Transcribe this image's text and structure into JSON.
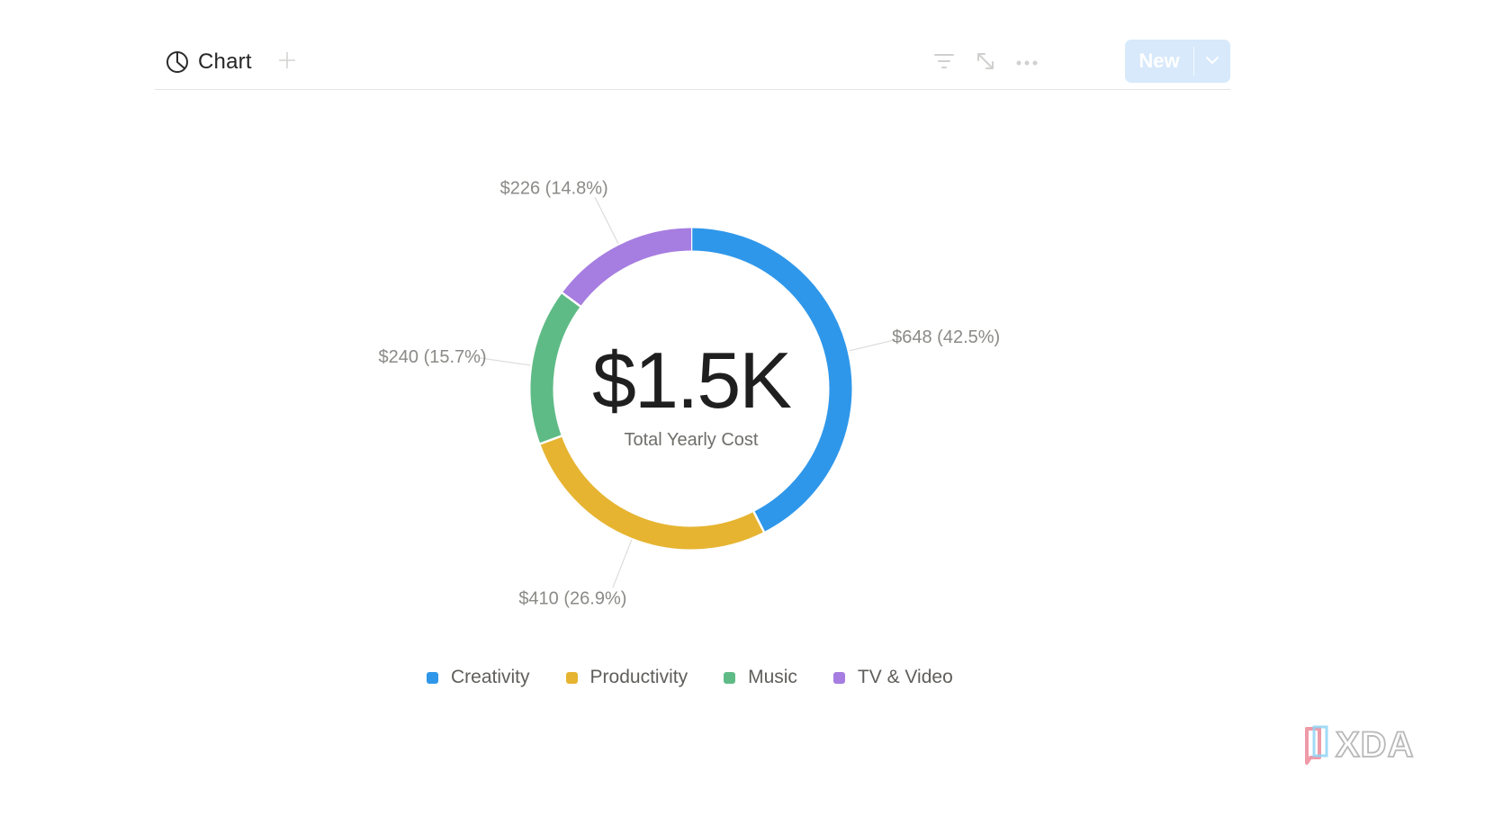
{
  "toolbar": {
    "view_tab_label": "Chart",
    "add_view_icon": "plus-icon",
    "filter_icon": "filter-icon",
    "expand_icon": "expand-icon",
    "more_icon": "more-horizontal-icon",
    "new_button_label": "New",
    "new_dropdown_icon": "chevron-down-icon"
  },
  "chart_data": {
    "type": "pie",
    "variant": "donut",
    "center_value": "$1.5K",
    "center_caption": "Total Yearly Cost",
    "legend_position": "bottom",
    "slices": [
      {
        "name": "Creativity",
        "value": 648,
        "label": "$648 (42.5%)",
        "color": "#2f97ea"
      },
      {
        "name": "Productivity",
        "value": 410,
        "label": "$410 (26.9%)",
        "color": "#e6b431"
      },
      {
        "name": "Music",
        "value": 240,
        "label": "$240 (15.7%)",
        "color": "#5fbb86"
      },
      {
        "name": "TV & Video",
        "value": 226,
        "label": "$226 (14.8%)",
        "color": "#a67de0"
      }
    ]
  },
  "watermark": {
    "text": "XDA"
  }
}
